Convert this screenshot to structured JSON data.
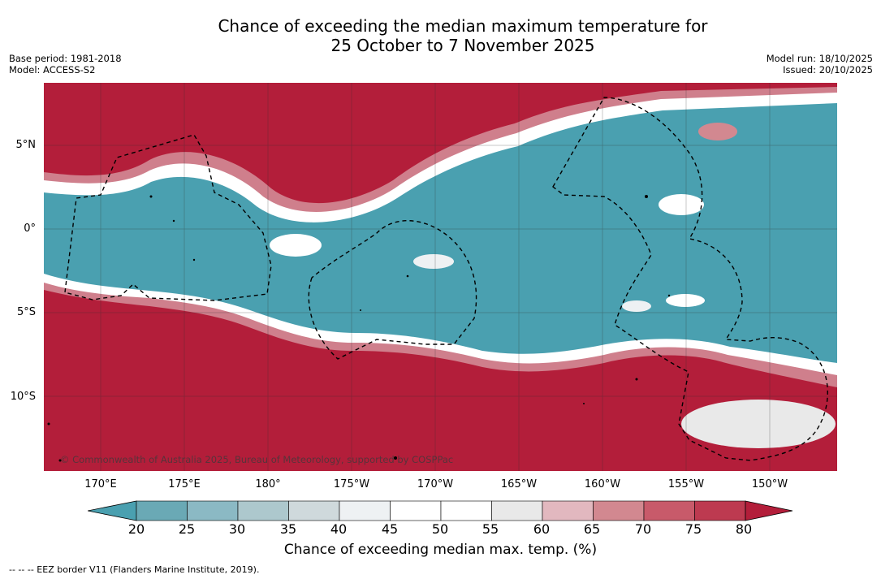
{
  "title": {
    "line1": "Chance of exceeding the median maximum temperature for",
    "line2": "25 October to 7 November 2025"
  },
  "meta_left": {
    "base_period": "Base period: 1981-2018",
    "model": "Model: ACCESS-S2"
  },
  "meta_right": {
    "model_run": "Model run: 18/10/2025",
    "issued": "Issued: 20/10/2025"
  },
  "map": {
    "copyright": "© Commonwealth of Australia 2025, Bureau of Meteorology, supported by COSPPac",
    "lat_labels": [
      "5°N",
      "0°",
      "5°S",
      "10°S"
    ],
    "lon_labels": [
      "170°E",
      "175°E",
      "180°",
      "175°W",
      "170°W",
      "165°W",
      "160°W",
      "155°W",
      "150°W"
    ],
    "colors": {
      "high": "#b31e3a",
      "low": "#4aa0b0",
      "neutral": "#ffffff"
    }
  },
  "colorbar": {
    "ticks": [
      "20",
      "25",
      "30",
      "35",
      "40",
      "45",
      "50",
      "55",
      "60",
      "65",
      "70",
      "75",
      "80"
    ],
    "colors": [
      "#4aa0b0",
      "#6aa9b5",
      "#8bb9c4",
      "#adc8cd",
      "#cfd9dc",
      "#eef1f3",
      "#ffffff",
      "#ffffff",
      "#e9e9e9",
      "#e2b8bf",
      "#d28890",
      "#c85a6a",
      "#bd3a50",
      "#b31e3a"
    ],
    "title": "Chance of exceeding median max. temp. (%)"
  },
  "legend_note": "--  --  -- EEZ border V11 (Flanders Marine Institute, 2019)."
}
